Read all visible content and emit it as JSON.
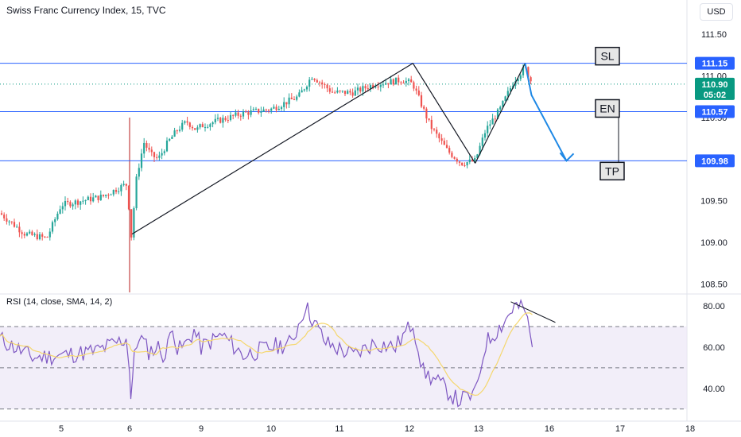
{
  "header": {
    "title": "Swiss Franc Currency Index, 15, TVC",
    "currency": "USD",
    "rsi_title": "RSI (14, close, SMA, 14, 2)"
  },
  "colors": {
    "up": "#26a69a",
    "down": "#ef5350",
    "level": "#2962ff",
    "rsi_line": "#7e57c2",
    "rsi_ma": "#f5d76e",
    "rsi_band": "#ede7f6",
    "current": "#089981"
  },
  "chart_data": [
    {
      "type": "candlestick",
      "name": "price",
      "ylim": [
        108.4,
        111.7
      ],
      "y_ticks": [
        "111.50",
        "111.00",
        "110.50",
        "109.50",
        "109.00",
        "108.50"
      ],
      "y_tick_values": [
        111.5,
        111.0,
        110.5,
        109.5,
        109.0,
        108.5
      ],
      "x_ticks": [
        "5",
        "6",
        "9",
        "10",
        "11",
        "12",
        "13",
        "16",
        "17",
        "18"
      ],
      "xlim": [
        4.15,
        18.0
      ],
      "path_points": [
        [
          4.15,
          109.35
        ],
        [
          4.5,
          109.1
        ],
        [
          4.8,
          109.05
        ],
        [
          5.0,
          109.45
        ],
        [
          5.3,
          109.5
        ],
        [
          5.6,
          109.55
        ],
        [
          5.95,
          109.7
        ],
        [
          6.05,
          109.0
        ],
        [
          6.3,
          109.8
        ],
        [
          6.6,
          110.2
        ],
        [
          6.9,
          110.05
        ],
        [
          7.2,
          110.0
        ],
        [
          7.6,
          110.2
        ],
        [
          8.0,
          110.35
        ],
        [
          8.4,
          110.45
        ],
        [
          8.8,
          110.35
        ],
        [
          9.2,
          110.45
        ],
        [
          9.6,
          110.55
        ],
        [
          10.0,
          110.6
        ],
        [
          10.4,
          110.75
        ],
        [
          10.6,
          111.0
        ],
        [
          10.9,
          110.8
        ],
        [
          11.2,
          110.8
        ],
        [
          11.5,
          110.9
        ],
        [
          11.9,
          110.95
        ],
        [
          12.05,
          110.9
        ],
        [
          12.3,
          110.4
        ],
        [
          12.55,
          110.1
        ],
        [
          12.75,
          109.95
        ],
        [
          12.95,
          109.98
        ],
        [
          13.1,
          110.35
        ],
        [
          13.3,
          110.6
        ],
        [
          13.5,
          110.95
        ],
        [
          13.65,
          111.1
        ],
        [
          13.75,
          110.9
        ]
      ],
      "levels": [
        {
          "label": "111.15",
          "value": 111.15,
          "tag": "SL"
        },
        {
          "label": "110.57",
          "value": 110.57,
          "tag": "EN"
        },
        {
          "label": "109.98",
          "value": 109.98,
          "tag": "TP"
        }
      ],
      "current": {
        "label": "110.90",
        "value": 110.9,
        "countdown": "05:02"
      },
      "trendlines": [
        {
          "from": [
            6.1,
            109.1
          ],
          "to": [
            12.05,
            111.15
          ]
        },
        {
          "from": [
            12.05,
            111.15
          ],
          "to": [
            12.95,
            109.95
          ]
        },
        {
          "from": [
            12.95,
            109.95
          ],
          "to": [
            13.65,
            111.15
          ]
        }
      ],
      "projection": {
        "from": [
          13.65,
          111.15
        ],
        "to": [
          13.95,
          109.98
        ]
      },
      "vertical_marker": {
        "x": 6.0
      }
    },
    {
      "type": "line",
      "name": "RSI",
      "ylim": [
        28,
        85
      ],
      "y_ticks": [
        "80.00",
        "60.00",
        "40.00"
      ],
      "y_tick_values": [
        80,
        60,
        40
      ],
      "bands": [
        30,
        50,
        70
      ],
      "series": [
        {
          "values": [
            [
              4.15,
              64
            ],
            [
              4.6,
              55
            ],
            [
              5.0,
              56
            ],
            [
              5.5,
              58
            ],
            [
              5.95,
              64
            ],
            [
              6.05,
              36
            ],
            [
              6.2,
              55
            ],
            [
              6.4,
              66
            ],
            [
              6.8,
              58
            ],
            [
              7.2,
              60
            ],
            [
              7.5,
              55
            ],
            [
              7.8,
              72
            ],
            [
              8.0,
              58
            ],
            [
              8.4,
              62
            ],
            [
              8.7,
              68
            ],
            [
              9.0,
              60
            ],
            [
              9.3,
              66
            ],
            [
              9.6,
              56
            ],
            [
              10.0,
              60
            ],
            [
              10.3,
              62
            ],
            [
              10.5,
              80
            ],
            [
              10.8,
              62
            ],
            [
              11.2,
              56
            ],
            [
              11.5,
              62
            ],
            [
              11.8,
              60
            ],
            [
              12.05,
              72
            ],
            [
              12.2,
              48
            ],
            [
              12.45,
              42
            ],
            [
              12.7,
              34
            ],
            [
              12.95,
              37
            ],
            [
              13.1,
              62
            ],
            [
              13.35,
              72
            ],
            [
              13.5,
              80
            ],
            [
              13.65,
              78
            ],
            [
              13.75,
              60
            ]
          ]
        }
      ],
      "trendline": {
        "from": [
          13.45,
          82
        ],
        "to": [
          13.85,
          72
        ]
      }
    }
  ]
}
